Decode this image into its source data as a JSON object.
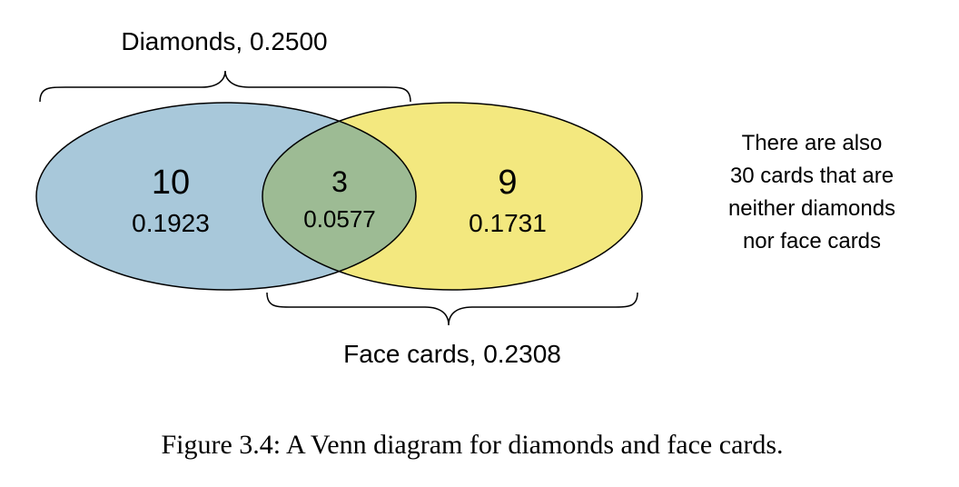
{
  "sets": {
    "diamonds": {
      "label": "Diamonds, 0.2500",
      "only_count": "10",
      "only_prob": "0.1923",
      "color": "#a8c8da"
    },
    "face_cards": {
      "label": "Face cards, 0.2308",
      "only_count": "9",
      "only_prob": "0.1731",
      "color": "#f3e87f"
    },
    "intersection": {
      "count": "3",
      "prob": "0.0577",
      "color": "#9dbb94"
    }
  },
  "note_lines": [
    "There are also",
    "30 cards that are",
    "neither diamonds",
    "nor face cards"
  ],
  "caption": "Figure 3.4: A Venn diagram for diamonds and face cards."
}
